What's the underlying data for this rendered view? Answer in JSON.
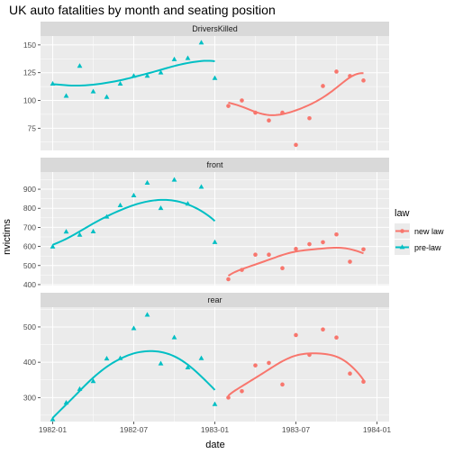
{
  "chart_data": {
    "type": "scatter",
    "title": "UK auto fatalities by month and seating position",
    "xlabel": "date",
    "ylabel": "nvictims",
    "x_tick_labels": [
      "1982-01",
      "1982-07",
      "1983-01",
      "1983-07",
      "1984-01"
    ],
    "legend": {
      "title": "law",
      "position": "right",
      "entries": [
        {
          "label": "new law",
          "color": "#F8766D",
          "shape": "circle"
        },
        {
          "label": "pre-law",
          "color": "#00BFC4",
          "shape": "triangle"
        }
      ]
    },
    "panels": [
      {
        "label": "DriversKilled",
        "ylim": [
          55,
          158
        ],
        "y_ticks": [
          75,
          100,
          125,
          150
        ],
        "series": [
          {
            "name": "pre-law",
            "color": "#00BFC4",
            "x": [
              "1982-01",
              "1982-02",
              "1982-03",
              "1982-04",
              "1982-05",
              "1982-06",
              "1982-07",
              "1982-08",
              "1982-09",
              "1982-10",
              "1982-11",
              "1982-12",
              "1983-01"
            ],
            "y": [
              115,
              104,
              131,
              108,
              103,
              115,
              122,
              122,
              125,
              137,
              138,
              152,
              120
            ]
          },
          {
            "name": "new law",
            "color": "#F8766D",
            "x": [
              "1983-02",
              "1983-03",
              "1983-04",
              "1983-05",
              "1983-06",
              "1983-07",
              "1983-08",
              "1983-09",
              "1983-10",
              "1983-11",
              "1983-12"
            ],
            "y": [
              95,
              100,
              89,
              82,
              89,
              60,
              84,
              113,
              126,
              122,
              118
            ]
          }
        ]
      },
      {
        "label": "front",
        "ylim": [
          395,
          990
        ],
        "y_ticks": [
          400,
          500,
          600,
          700,
          800,
          900
        ],
        "series": [
          {
            "name": "pre-law",
            "color": "#00BFC4",
            "x": [
              "1982-01",
              "1982-02",
              "1982-03",
              "1982-04",
              "1982-05",
              "1982-06",
              "1982-07",
              "1982-08",
              "1982-09",
              "1982-10",
              "1982-11",
              "1982-12",
              "1983-01"
            ],
            "y": [
              598,
              677,
              660,
              678,
              755,
              815,
              867,
              933,
              800,
              949,
              823,
              912,
              622
            ]
          },
          {
            "name": "new law",
            "color": "#F8766D",
            "x": [
              "1983-02",
              "1983-03",
              "1983-04",
              "1983-05",
              "1983-06",
              "1983-07",
              "1983-08",
              "1983-09",
              "1983-10",
              "1983-11",
              "1983-12"
            ],
            "y": [
              428,
              477,
              557,
              557,
              486,
              587,
              612,
              622,
              663,
              520,
              585
            ]
          }
        ]
      },
      {
        "label": "rear",
        "ylim": [
          232,
          556
        ],
        "y_ticks": [
          300,
          400,
          500
        ],
        "series": [
          {
            "name": "pre-law",
            "color": "#00BFC4",
            "x": [
              "1982-01",
              "1982-02",
              "1982-03",
              "1982-04",
              "1982-05",
              "1982-06",
              "1982-07",
              "1982-08",
              "1982-09",
              "1982-10",
              "1982-11",
              "1982-12",
              "1983-01"
            ],
            "y": [
              238,
              285,
              324,
              346,
              410,
              411,
              496,
              534,
              396,
              470,
              385,
              411,
              281
            ]
          },
          {
            "name": "new law",
            "color": "#F8766D",
            "x": [
              "1983-02",
              "1983-03",
              "1983-04",
              "1983-05",
              "1983-06",
              "1983-07",
              "1983-08",
              "1983-09",
              "1983-10",
              "1983-11",
              "1983-12"
            ],
            "y": [
              300,
              318,
              391,
              398,
              337,
              477,
              421,
              493,
              470,
              368,
              345
            ]
          }
        ]
      }
    ],
    "grid": true,
    "smoothing": "loess"
  }
}
